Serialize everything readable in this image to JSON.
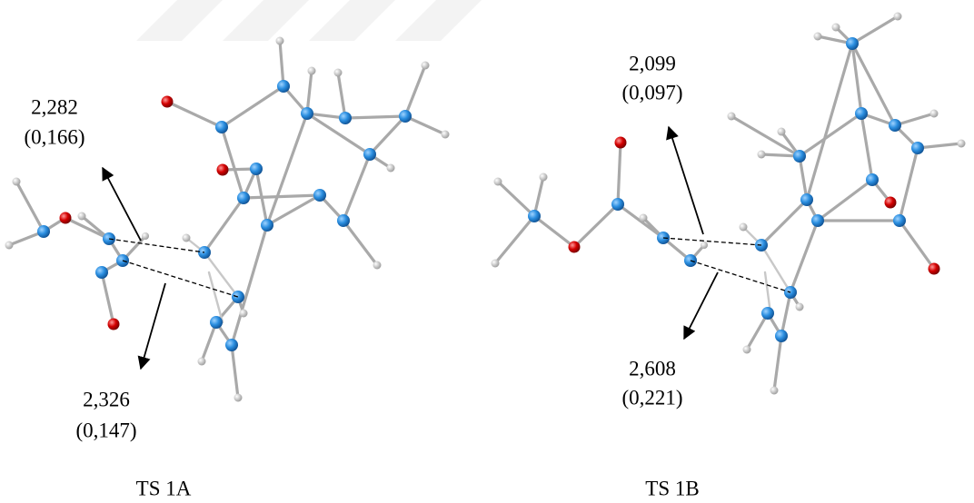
{
  "panels": [
    {
      "label": "TS 1A",
      "annotations": [
        {
          "distance": "2,282",
          "order": "(0,166)"
        },
        {
          "distance": "2,326",
          "order": "(0,147)"
        }
      ]
    },
    {
      "label": "TS 1B",
      "annotations": [
        {
          "distance": "2,099",
          "order": "(0,097)"
        },
        {
          "distance": "2,608",
          "order": "(0,221)"
        }
      ]
    }
  ]
}
